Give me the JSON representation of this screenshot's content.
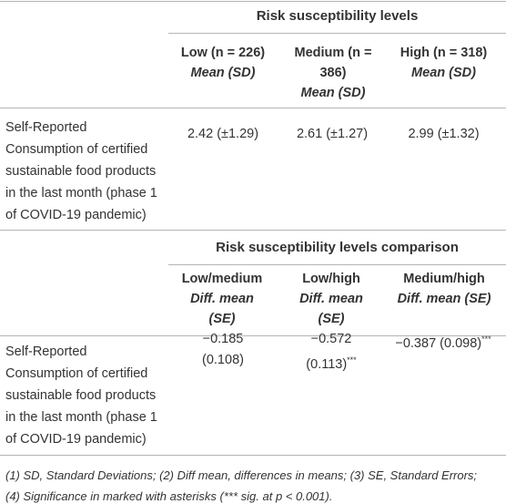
{
  "table1": {
    "title": "Risk susceptibility levels",
    "headers": [
      {
        "label": "Low (n = 226)",
        "stat": "Mean (SD)"
      },
      {
        "label": "Medium (n = 386)",
        "stat": "Mean (SD)"
      },
      {
        "label": "High (n = 318)",
        "stat": "Mean (SD)"
      }
    ],
    "row": {
      "label": "Self-Reported Consumption of certified sustainable food products in the last month (phase 1 of COVID-19 pandemic)",
      "cells": [
        "2.42 (±1.29)",
        "2.61 (±1.27)",
        "2.99 (±1.32)"
      ]
    }
  },
  "table2": {
    "title": "Risk susceptibility levels comparison",
    "headers": [
      {
        "label": "Low/medium",
        "stat": "Diff. mean (SE)"
      },
      {
        "label": "Low/high",
        "stat": "Diff. mean (SE)"
      },
      {
        "label": "Medium/high",
        "stat": "Diff. mean (SE)"
      }
    ],
    "row": {
      "label": "Self-Reported Consumption of certified sustainable food products in the last month (phase 1 of COVID-19 pandemic)",
      "cells": [
        {
          "text": "−0.185 (0.108)",
          "sig": null
        },
        {
          "text": "−0.572 (0.113)",
          "sig": "***"
        },
        {
          "text": "−0.387 (0.098)",
          "sig": "***"
        }
      ]
    }
  },
  "footnotes": [
    "(1) SD, Standard Deviations; (2) Diff mean, differences in means; (3) SE, Standard Errors;",
    "(4) Significance in marked with asterisks (*** sig. at p < 0.001)."
  ]
}
